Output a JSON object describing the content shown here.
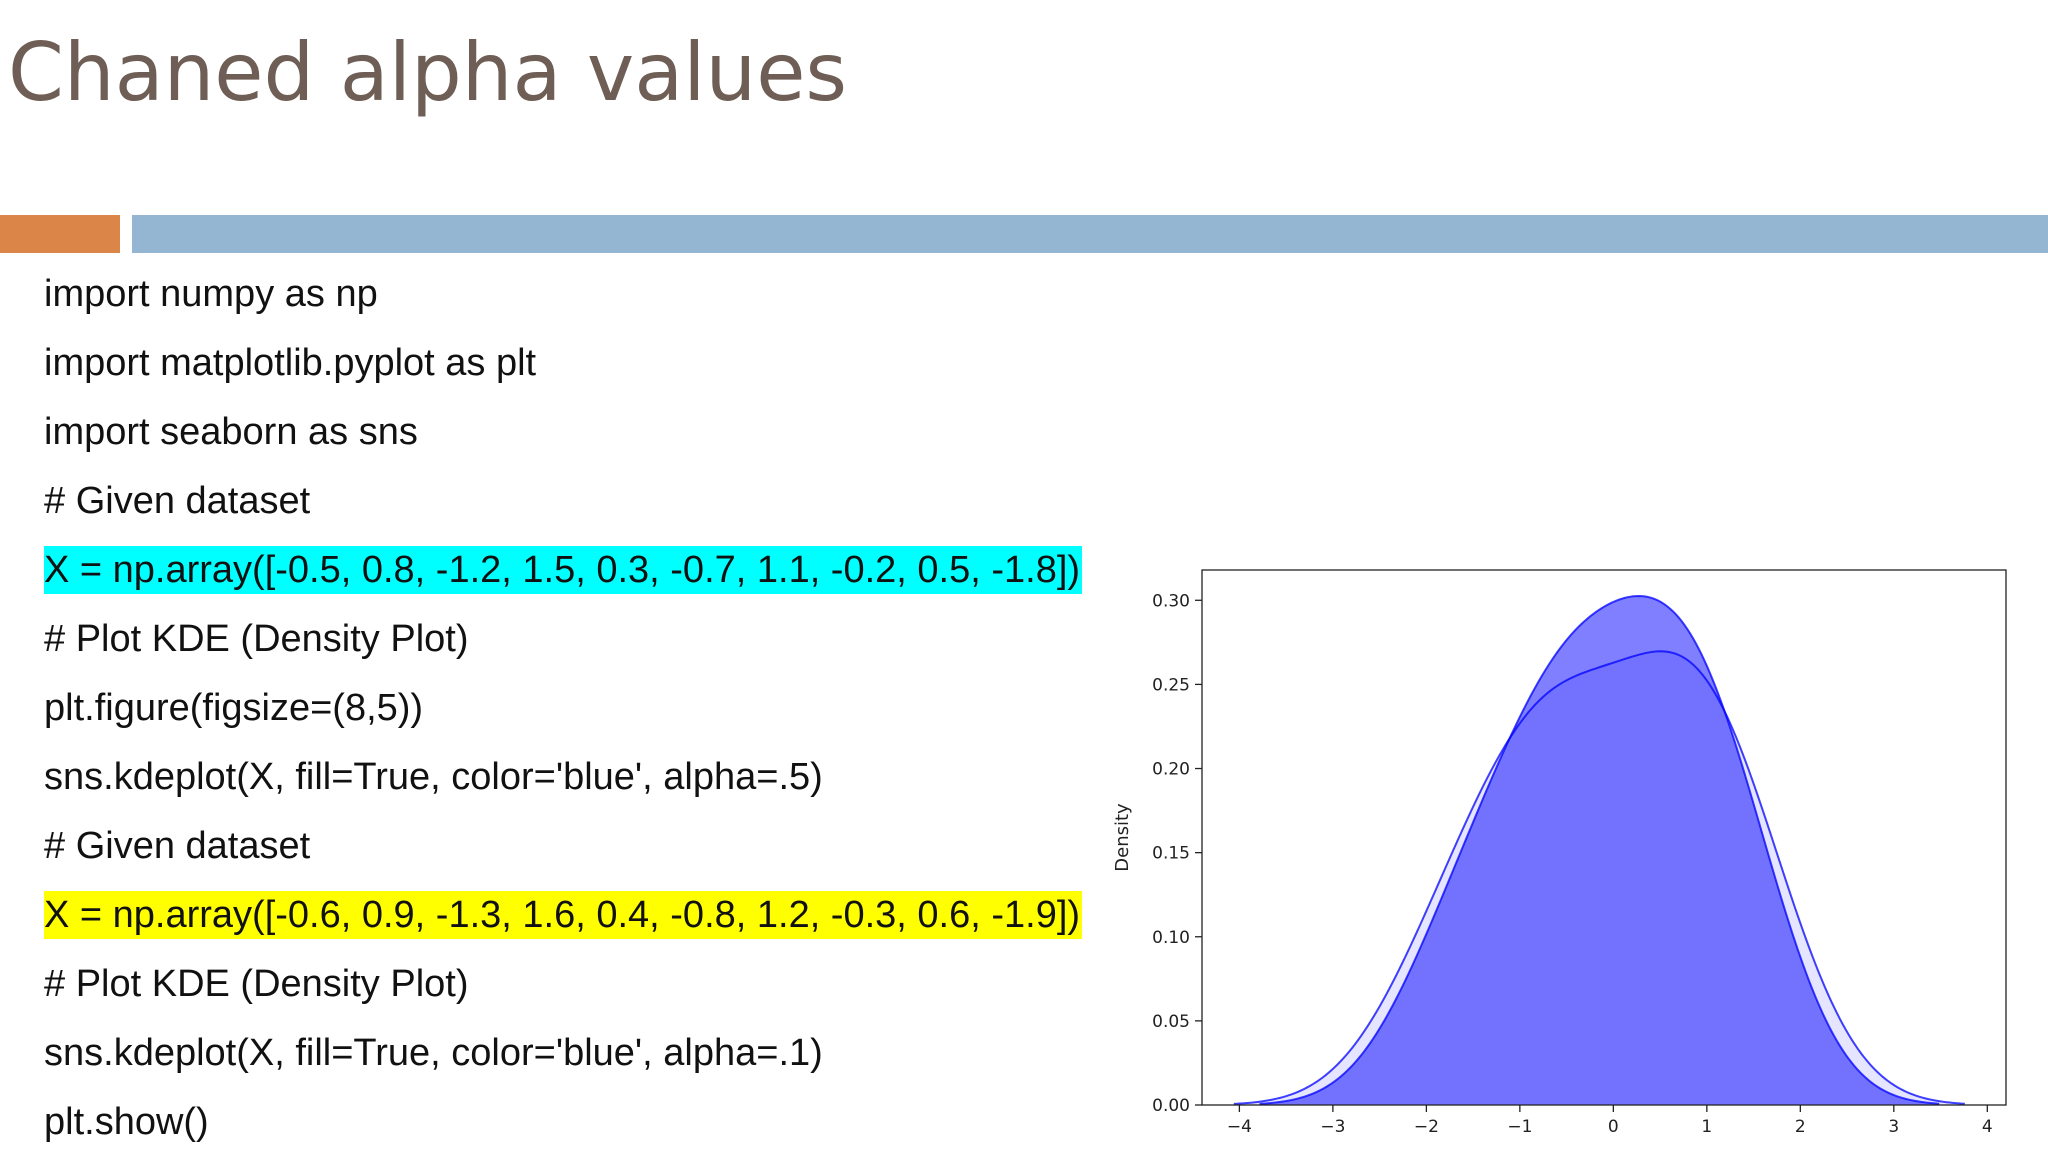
{
  "slide": {
    "title": "Chaned alpha values",
    "accent_colors": {
      "orange": "#dc8549",
      "blue": "#94b6d2"
    }
  },
  "code_lines": [
    {
      "text": "import numpy as np",
      "highlight": ""
    },
    {
      "text": "import matplotlib.pyplot as plt",
      "highlight": ""
    },
    {
      "text": "import seaborn as sns",
      "highlight": ""
    },
    {
      "text": "# Given dataset",
      "highlight": ""
    },
    {
      "text": "X = np.array([-0.5, 0.8, -1.2, 1.5, 0.3, -0.7, 1.1, -0.2, 0.5, -1.8])",
      "highlight": "#00ffff"
    },
    {
      "text": "# Plot KDE (Density Plot)",
      "highlight": ""
    },
    {
      "text": "plt.figure(figsize=(8,5))",
      "highlight": ""
    },
    {
      "text": "sns.kdeplot(X, fill=True, color='blue', alpha=.5)",
      "highlight": ""
    },
    {
      "text": "# Given dataset",
      "highlight": ""
    },
    {
      "text": "X = np.array([-0.6, 0.9, -1.3, 1.6, 0.4, -0.8, 1.2, -0.3, 0.6, -1.9])",
      "highlight": "#ffff00"
    },
    {
      "text": "# Plot KDE (Density Plot)",
      "highlight": ""
    },
    {
      "text": "sns.kdeplot(X, fill=True, color='blue', alpha=.1)",
      "highlight": ""
    },
    {
      "text": "plt.show()",
      "highlight": ""
    }
  ],
  "chart_data": {
    "type": "area",
    "ylabel": "Density",
    "xlabel": "",
    "xlim": [
      -4.4,
      4.2
    ],
    "ylim": [
      0,
      0.318
    ],
    "xticks": [
      "−4",
      "−3",
      "−2",
      "−1",
      "0",
      "1",
      "2",
      "3",
      "4"
    ],
    "xtick_values": [
      -4,
      -3,
      -2,
      -1,
      0,
      1,
      2,
      3,
      4
    ],
    "yticks": [
      "0.00",
      "0.05",
      "0.10",
      "0.15",
      "0.20",
      "0.25",
      "0.30"
    ],
    "ytick_values": [
      0,
      0.05,
      0.1,
      0.15,
      0.2,
      0.25,
      0.3
    ],
    "series": [
      {
        "data": [
          -1.8,
          -1.2,
          -0.7,
          -0.5,
          -0.2,
          0.3,
          0.5,
          0.8,
          1.1,
          1.5
        ],
        "alpha": 0.5,
        "color": "#0000ff"
      },
      {
        "data": [
          -1.9,
          -1.3,
          -0.8,
          -0.6,
          -0.3,
          0.4,
          0.6,
          0.9,
          1.2,
          1.6
        ],
        "alpha": 0.1,
        "color": "#0000ff"
      }
    ]
  }
}
